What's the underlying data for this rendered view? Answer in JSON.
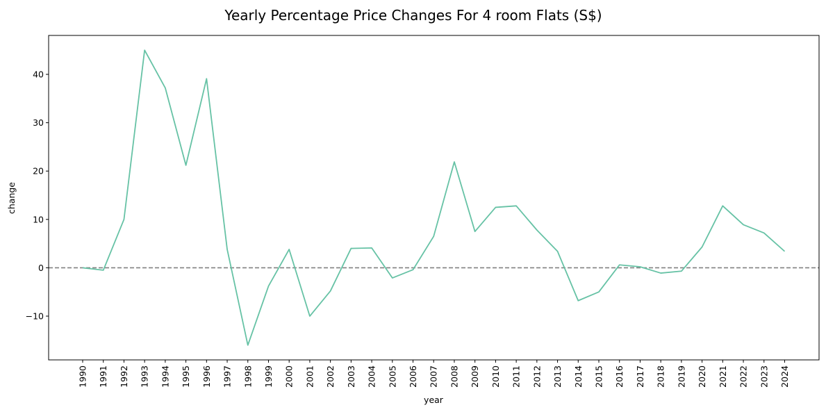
{
  "chart_data": {
    "type": "line",
    "title": "Yearly Percentage Price Changes For 4 room Flats (S$)",
    "xlabel": "year",
    "ylabel": "change",
    "x": [
      "1990",
      "1991",
      "1992",
      "1993",
      "1994",
      "1995",
      "1996",
      "1997",
      "1998",
      "1999",
      "2000",
      "2001",
      "2002",
      "2003",
      "2004",
      "2005",
      "2006",
      "2007",
      "2008",
      "2009",
      "2010",
      "2011",
      "2012",
      "2013",
      "2014",
      "2015",
      "2016",
      "2017",
      "2018",
      "2019",
      "2020",
      "2021",
      "2022",
      "2023",
      "2024"
    ],
    "series": [
      {
        "values": [
          0.0,
          -0.5,
          10.0,
          45.0,
          37.2,
          21.2,
          39.1,
          3.8,
          -16.0,
          -3.8,
          3.8,
          -10.0,
          -4.8,
          4.0,
          4.1,
          -2.1,
          -0.4,
          6.5,
          21.9,
          7.5,
          12.5,
          12.8,
          7.8,
          3.4,
          -6.8,
          -5.0,
          0.6,
          0.2,
          -1.1,
          -0.7,
          4.3,
          12.8,
          8.9,
          7.2,
          3.4
        ],
        "color": "#66c2a5"
      }
    ],
    "reference_line": {
      "y": 0,
      "style": "dashed",
      "color": "#808080"
    },
    "yticks": [
      -10,
      0,
      10,
      20,
      30,
      40
    ],
    "ylim": [
      -19.05,
      48.05
    ],
    "grid": false
  }
}
